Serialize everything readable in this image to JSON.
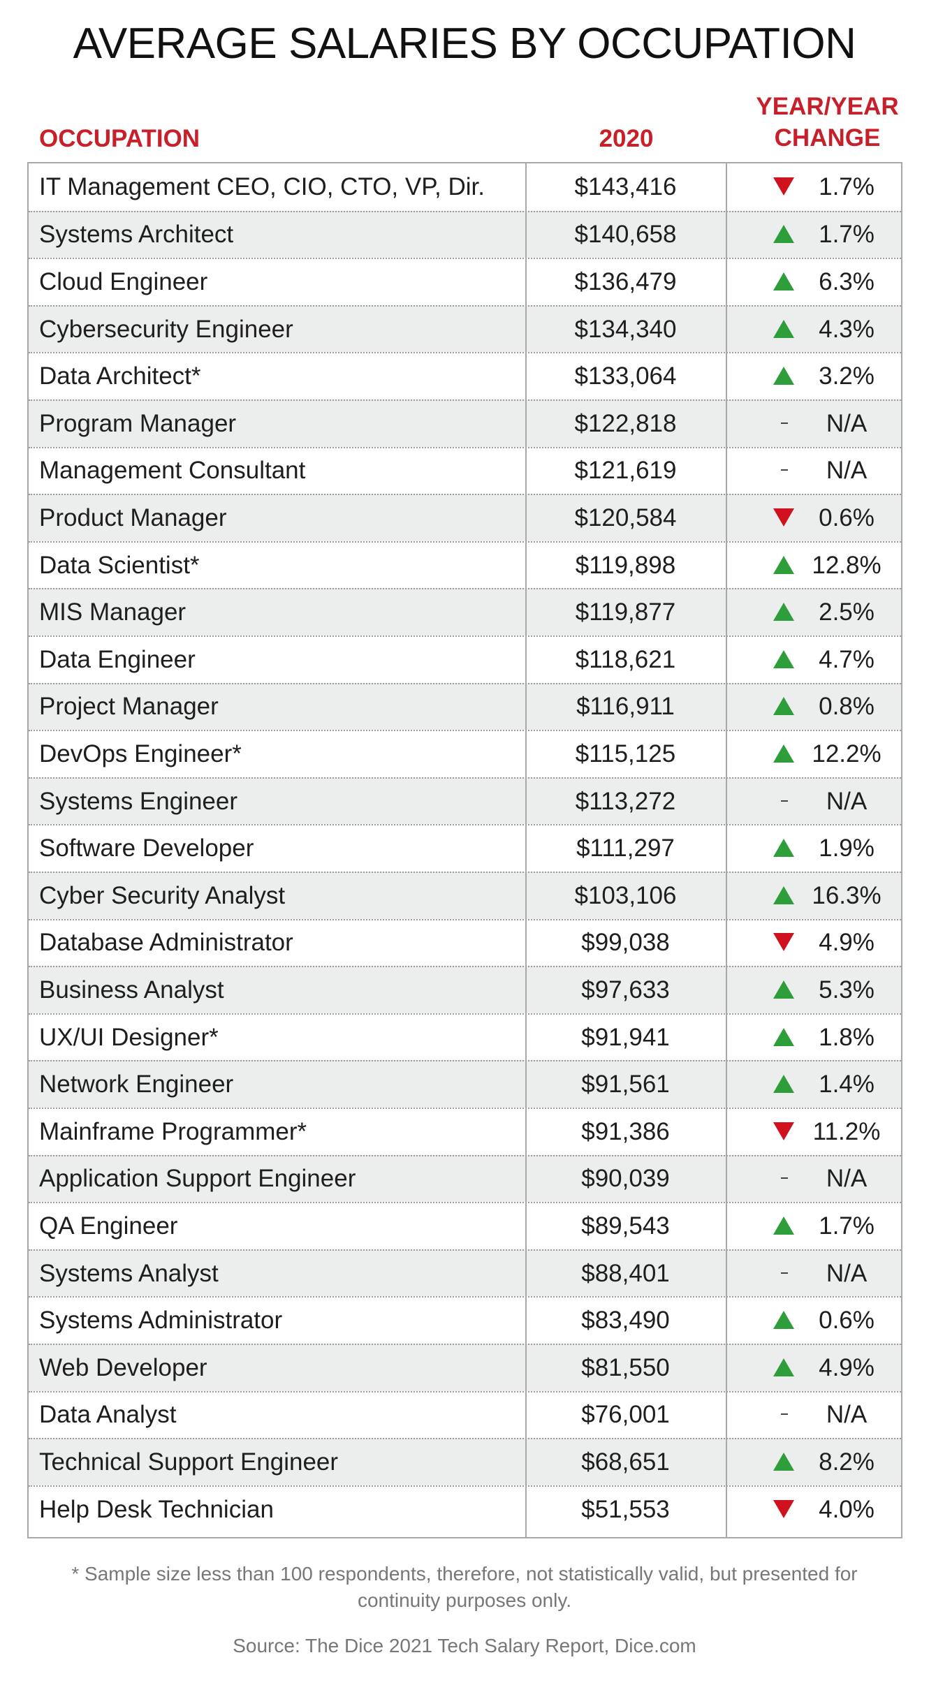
{
  "chart_data": {
    "type": "table",
    "title": "AVERAGE SALARIES BY OCCUPATION",
    "columns": {
      "occupation": "OCCUPATION",
      "salary": "2020",
      "change_line1": "YEAR/YEAR",
      "change_line2": "CHANGE"
    },
    "rows": [
      {
        "occupation": "IT Management CEO, CIO, CTO, VP, Dir.",
        "salary": "$143,416",
        "direction": "down",
        "change": "1.7%"
      },
      {
        "occupation": "Systems Architect",
        "salary": "$140,658",
        "direction": "up",
        "change": "1.7%"
      },
      {
        "occupation": "Cloud Engineer",
        "salary": "$136,479",
        "direction": "up",
        "change": "6.3%"
      },
      {
        "occupation": "Cybersecurity Engineer",
        "salary": "$134,340",
        "direction": "up",
        "change": "4.3%"
      },
      {
        "occupation": "Data Architect*",
        "salary": "$133,064",
        "direction": "up",
        "change": "3.2%"
      },
      {
        "occupation": "Program Manager",
        "salary": "$122,818",
        "direction": "none",
        "change": "N/A"
      },
      {
        "occupation": "Management Consultant",
        "salary": "$121,619",
        "direction": "none",
        "change": "N/A"
      },
      {
        "occupation": "Product Manager",
        "salary": "$120,584",
        "direction": "down",
        "change": "0.6%"
      },
      {
        "occupation": "Data Scientist*",
        "salary": "$119,898",
        "direction": "up",
        "change": "12.8%"
      },
      {
        "occupation": "MIS Manager",
        "salary": "$119,877",
        "direction": "up",
        "change": "2.5%"
      },
      {
        "occupation": "Data Engineer",
        "salary": "$118,621",
        "direction": "up",
        "change": "4.7%"
      },
      {
        "occupation": "Project Manager",
        "salary": "$116,911",
        "direction": "up",
        "change": "0.8%"
      },
      {
        "occupation": "DevOps Engineer*",
        "salary": "$115,125",
        "direction": "up",
        "change": "12.2%"
      },
      {
        "occupation": "Systems Engineer",
        "salary": "$113,272",
        "direction": "none",
        "change": "N/A"
      },
      {
        "occupation": "Software Developer",
        "salary": "$111,297",
        "direction": "up",
        "change": "1.9%"
      },
      {
        "occupation": "Cyber Security Analyst",
        "salary": "$103,106",
        "direction": "up",
        "change": "16.3%"
      },
      {
        "occupation": "Database Administrator",
        "salary": "$99,038",
        "direction": "down",
        "change": "4.9%"
      },
      {
        "occupation": "Business Analyst",
        "salary": "$97,633",
        "direction": "up",
        "change": "5.3%"
      },
      {
        "occupation": "UX/UI Designer*",
        "salary": "$91,941",
        "direction": "up",
        "change": "1.8%"
      },
      {
        "occupation": "Network Engineer",
        "salary": "$91,561",
        "direction": "up",
        "change": "1.4%"
      },
      {
        "occupation": "Mainframe Programmer*",
        "salary": "$91,386",
        "direction": "down",
        "change": "11.2%"
      },
      {
        "occupation": "Application Support Engineer",
        "salary": "$90,039",
        "direction": "none",
        "change": "N/A"
      },
      {
        "occupation": "QA Engineer",
        "salary": "$89,543",
        "direction": "up",
        "change": "1.7%"
      },
      {
        "occupation": "Systems Analyst",
        "salary": "$88,401",
        "direction": "none",
        "change": "N/A"
      },
      {
        "occupation": "Systems Administrator",
        "salary": "$83,490",
        "direction": "up",
        "change": "0.6%"
      },
      {
        "occupation": "Web Developer",
        "salary": "$81,550",
        "direction": "up",
        "change": "4.9%"
      },
      {
        "occupation": "Data Analyst",
        "salary": "$76,001",
        "direction": "none",
        "change": "N/A"
      },
      {
        "occupation": "Technical Support Engineer",
        "salary": "$68,651",
        "direction": "up",
        "change": "8.2%"
      },
      {
        "occupation": "Help Desk Technician",
        "salary": "$51,553",
        "direction": "down",
        "change": "4.0%"
      }
    ],
    "footnote": "* Sample size less than 100 respondents, therefore, not statistically valid, but presented for continuity purposes only.",
    "source": "Source: The Dice 2021 Tech Salary Report, Dice.com"
  },
  "colors": {
    "header_red": "#c8202a",
    "up_green": "#2e9e3a",
    "down_red": "#d0121e",
    "row_shade": "#eceeed",
    "border_gray": "#a8a8a8",
    "footnote_gray": "#777777"
  },
  "icons": {
    "up": "triangle-up-icon",
    "down": "triangle-down-icon",
    "none": "dash-icon"
  }
}
